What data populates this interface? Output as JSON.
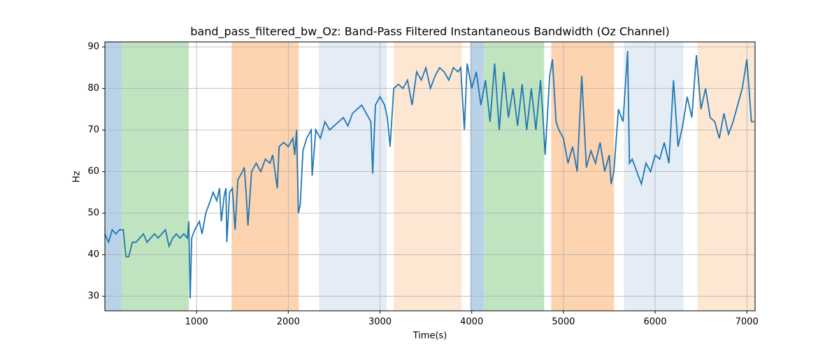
{
  "chart_data": {
    "type": "line",
    "title": "band_pass_filtered_bw_Oz: Band-Pass Filtered Instantaneous Bandwidth (Oz Channel)",
    "x_label": "Time(s)",
    "y_label": "Hz",
    "xlim": [
      0,
      7090
    ],
    "ylim": [
      26.5,
      91.2
    ],
    "xticks": [
      1000,
      2000,
      3000,
      4000,
      5000,
      6000,
      7000
    ],
    "yticks": [
      30,
      40,
      50,
      60,
      70,
      80,
      90
    ],
    "grid": true,
    "spans": [
      {
        "x": [
          0,
          183
        ],
        "color": "#bad2e8"
      },
      {
        "x": [
          183,
          915
        ],
        "color": "#c0e3c0"
      },
      {
        "x": [
          1381,
          2113
        ],
        "color": "#fdd3b0"
      },
      {
        "x": [
          2334,
          3074
        ],
        "color": "#e4ecf6"
      },
      {
        "x": [
          3150,
          3890
        ],
        "color": "#fee7d2"
      },
      {
        "x": [
          3982,
          4134
        ],
        "color": "#bad2e8"
      },
      {
        "x": [
          4134,
          4790
        ],
        "color": "#c0e3c0"
      },
      {
        "x": [
          4867,
          5553
        ],
        "color": "#fdd3b0"
      },
      {
        "x": [
          5660,
          6308
        ],
        "color": "#e4ecf6"
      },
      {
        "x": [
          6461,
          7090
        ],
        "color": "#fee7d2"
      }
    ],
    "series": [
      {
        "color": "#1f77b4",
        "x": [
          0,
          40,
          80,
          120,
          160,
          200,
          230,
          260,
          300,
          340,
          380,
          420,
          460,
          500,
          540,
          580,
          620,
          660,
          700,
          740,
          780,
          820,
          860,
          900,
          915,
          930,
          947,
          980,
          1030,
          1060,
          1100,
          1150,
          1180,
          1220,
          1250,
          1270,
          1300,
          1320,
          1330,
          1360,
          1390,
          1420,
          1450,
          1500,
          1520,
          1540,
          1560,
          1600,
          1650,
          1700,
          1750,
          1800,
          1830,
          1880,
          1900,
          1950,
          2000,
          2050,
          2070,
          2090,
          2110,
          2130,
          2160,
          2200,
          2250,
          2260,
          2300,
          2350,
          2400,
          2450,
          2500,
          2550,
          2600,
          2650,
          2700,
          2750,
          2800,
          2850,
          2900,
          2920,
          2950,
          3000,
          3050,
          3080,
          3110,
          3150,
          3200,
          3250,
          3300,
          3350,
          3400,
          3450,
          3500,
          3550,
          3600,
          3650,
          3700,
          3750,
          3800,
          3850,
          3880,
          3920,
          3950,
          4000,
          4050,
          4100,
          4150,
          4200,
          4250,
          4300,
          4350,
          4400,
          4450,
          4500,
          4550,
          4600,
          4650,
          4700,
          4750,
          4780,
          4800,
          4850,
          4880,
          4920,
          4950,
          5000,
          5050,
          5100,
          5150,
          5200,
          5250,
          5300,
          5350,
          5400,
          5450,
          5500,
          5520,
          5550,
          5600,
          5650,
          5700,
          5720,
          5750,
          5800,
          5850,
          5900,
          5950,
          6000,
          6050,
          6100,
          6150,
          6200,
          6250,
          6300,
          6350,
          6400,
          6450,
          6500,
          6550,
          6600,
          6650,
          6700,
          6750,
          6800,
          6850,
          6900,
          6950,
          7000,
          7050,
          7080
        ],
        "values": [
          45,
          43,
          46,
          45,
          46,
          46,
          39.5,
          39.5,
          43,
          43,
          44,
          45,
          43,
          44,
          45,
          44,
          45,
          46,
          42,
          44,
          45,
          44,
          45,
          44,
          48,
          29.5,
          44,
          46,
          48,
          45,
          50,
          53,
          55,
          53,
          56,
          48,
          54,
          56,
          43,
          55,
          56,
          46,
          58,
          60,
          61,
          55,
          47,
          60,
          62,
          60,
          63,
          62,
          64,
          56,
          66,
          67,
          66,
          68,
          64,
          70,
          50,
          52,
          65,
          68,
          70,
          59,
          70,
          68,
          72,
          70,
          71,
          72,
          73,
          71,
          74,
          75,
          76,
          74,
          72,
          59.5,
          76,
          78,
          76,
          73,
          66,
          80,
          81,
          80,
          82,
          76,
          84,
          82,
          85,
          80,
          83,
          85,
          84,
          82,
          85,
          84,
          85,
          70,
          86,
          80,
          84,
          76,
          82,
          72,
          86,
          70,
          84,
          73,
          80,
          71,
          81,
          70,
          80,
          70,
          82,
          72,
          64,
          83,
          87,
          72,
          70,
          68,
          62,
          66,
          60,
          83,
          61,
          65,
          62,
          67,
          60,
          64,
          57,
          60,
          75,
          72,
          89,
          62,
          63,
          60,
          57,
          62,
          60,
          64,
          63,
          67,
          62,
          82,
          66,
          71,
          78,
          73,
          88,
          75,
          80,
          73,
          72,
          68,
          74,
          69,
          72,
          76,
          80,
          87,
          72,
          72
        ]
      }
    ]
  }
}
